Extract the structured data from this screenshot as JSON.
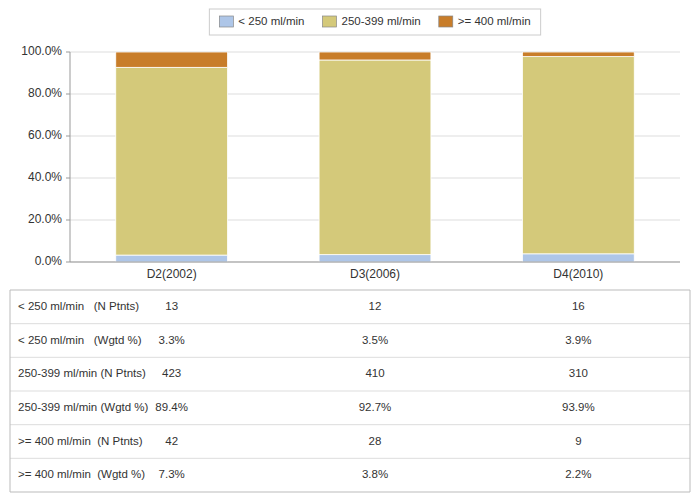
{
  "chart_data": {
    "type": "bar",
    "stacked": true,
    "categories": [
      "D2(2002)",
      "D3(2006)",
      "D4(2010)"
    ],
    "series": [
      {
        "name": "< 250 ml/min",
        "color": "#aec6e8",
        "values": [
          3.3,
          3.5,
          3.9
        ]
      },
      {
        "name": "250-399 ml/min",
        "color": "#d4c97a",
        "values": [
          89.4,
          92.7,
          93.9
        ]
      },
      {
        "name": ">= 400 ml/min",
        "color": "#c87d2a",
        "values": [
          7.3,
          3.8,
          2.2
        ]
      }
    ],
    "ylim": [
      0,
      100
    ],
    "yticks": [
      {
        "value": 0,
        "label": "0.0%"
      },
      {
        "value": 20,
        "label": "20.0%"
      },
      {
        "value": 40,
        "label": "40.0%"
      },
      {
        "value": 60,
        "label": "60.0%"
      },
      {
        "value": 80,
        "label": "80.0%"
      },
      {
        "value": 100,
        "label": "100.0%"
      }
    ],
    "grid": true,
    "legend": "top",
    "table": {
      "row_labels": [
        "< 250 ml/min   (N Ptnts)",
        "< 250 ml/min   (Wgtd %)",
        "250-399 ml/min (N Ptnts)",
        "250-399 ml/min (Wgtd %)",
        ">= 400 ml/min  (N Ptnts)",
        ">= 400 ml/min  (Wgtd %)"
      ],
      "columns": [
        [
          "13",
          "3.3%",
          "423",
          "89.4%",
          "42",
          "7.3%"
        ],
        [
          "12",
          "3.5%",
          "410",
          "92.7%",
          "28",
          "3.8%"
        ],
        [
          "16",
          "3.9%",
          "310",
          "93.9%",
          "9",
          "2.2%"
        ]
      ]
    }
  }
}
